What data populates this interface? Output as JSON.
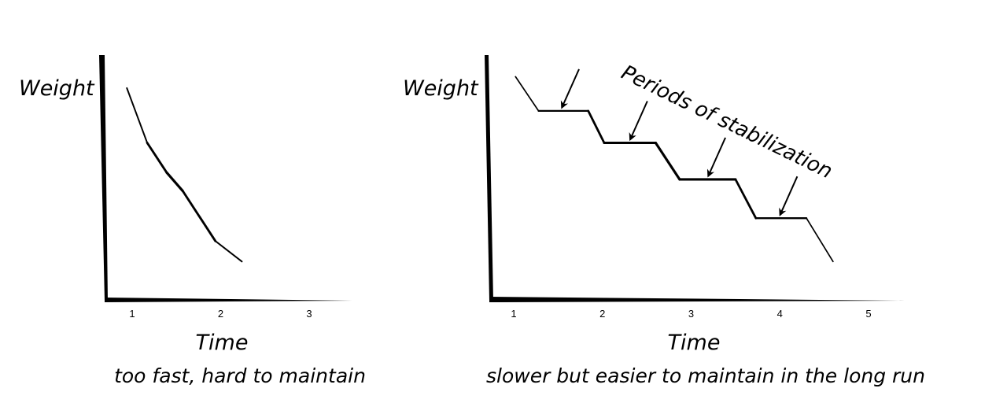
{
  "chart_data": [
    {
      "type": "line",
      "ylabel": "Weight",
      "xlabel": "Time",
      "caption": "too fast, hard to maintain",
      "x_ticks": [
        "1",
        "2",
        "3"
      ],
      "xlim": [
        0.6,
        3.5
      ],
      "ylim": [
        0,
        10
      ],
      "series": [
        {
          "x": [
            0.94,
            1.17,
            1.39,
            1.57,
            1.94,
            2.24
          ],
          "y": [
            8.9,
            6.5,
            5.2,
            4.4,
            2.2,
            1.3
          ]
        }
      ]
    },
    {
      "type": "line",
      "ylabel": "Weight",
      "xlabel": "Time",
      "caption": "slower but easier to maintain in the long run",
      "annotation": "Periods of stabilization",
      "x_ticks": [
        "1",
        "2",
        "3",
        "4",
        "5"
      ],
      "xlim": [
        0.6,
        5.4
      ],
      "ylim": [
        0,
        10
      ],
      "series": [
        {
          "x": [
            1.02,
            1.28,
            1.84,
            2.02,
            2.6,
            2.87,
            3.5,
            3.73,
            4.3,
            4.6
          ],
          "y": [
            9.4,
            7.9,
            7.9,
            6.5,
            6.5,
            4.9,
            4.9,
            3.2,
            3.2,
            1.3
          ]
        }
      ],
      "stabilization_arrows_x": [
        1.55,
        2.32,
        3.2,
        4.01
      ]
    }
  ]
}
